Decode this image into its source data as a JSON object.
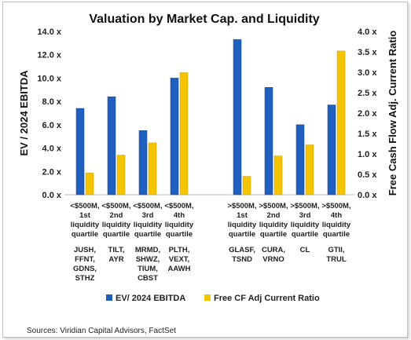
{
  "source_note": "Sources: Viridian Capital Advisors, FactSet",
  "chart_data": {
    "type": "bar",
    "title": "Valuation by Market Cap. and Liquidity",
    "ylabel": "EV / 2024 EBITDA",
    "y2label": "Free Cash Flow Adj. Current Ratio",
    "ylim": [
      0,
      14
    ],
    "yticks": [
      "0.0 x",
      "2.0 x",
      "4.0 x",
      "6.0 x",
      "8.0 x",
      "10.0 x",
      "12.0 x",
      "14.0 x"
    ],
    "y2lim": [
      0,
      4
    ],
    "y2ticks": [
      "0.0 x",
      "0.5 x",
      "1.0 x",
      "1.5 x",
      "2.0 x",
      "2.5 x",
      "3.0 x",
      "3.5 x",
      "4.0 x"
    ],
    "grid": false,
    "legend_position": "bottom",
    "categories": [
      {
        "label": [
          "<$500M,",
          "1st",
          "liquidity",
          "quartile"
        ],
        "tickers": [
          "JUSH,",
          "FFNT,",
          "GDNS,",
          "STHZ"
        ]
      },
      {
        "label": [
          "<$500M,",
          "2nd",
          "liquidity",
          "quartile"
        ],
        "tickers": [
          "TILT,",
          "AYR"
        ]
      },
      {
        "label": [
          "<$500M,",
          "3rd",
          "liquidity",
          "quartile"
        ],
        "tickers": [
          "MRMD,",
          "SHWZ,",
          "TIUM,",
          "CBST"
        ]
      },
      {
        "label": [
          "<$500M,",
          "4th",
          "liquidity",
          "quartile"
        ],
        "tickers": [
          "PLTH,",
          "VEXT,",
          "AAWH"
        ]
      },
      {
        "label": [
          ">$500M,",
          "1st",
          "liquidity",
          "quartile"
        ],
        "tickers": [
          "GLASF,",
          "TSND"
        ]
      },
      {
        "label": [
          ">$500M,",
          "2nd",
          "liquidity",
          "quartile"
        ],
        "tickers": [
          "CURA,",
          "VRNO"
        ]
      },
      {
        "label": [
          ">$500M,",
          "3rd",
          "liquidity",
          "quartile"
        ],
        "tickers": [
          "CL"
        ]
      },
      {
        "label": [
          ">$500M,",
          "4th",
          "liquidity",
          "quartile"
        ],
        "tickers": [
          "GTII,",
          "TRUL"
        ]
      }
    ],
    "series": [
      {
        "name": "EV/ 2024 EBITDA",
        "axis": "left",
        "color": "#1f5fbf",
        "values": [
          7.4,
          8.4,
          5.5,
          10.0,
          13.3,
          9.2,
          6.0,
          7.7
        ]
      },
      {
        "name": "Free CF Adj Current Ratio",
        "axis": "right",
        "color": "#f5c400",
        "values": [
          0.53,
          0.97,
          1.27,
          2.99,
          0.45,
          0.95,
          1.22,
          3.52
        ]
      }
    ]
  }
}
